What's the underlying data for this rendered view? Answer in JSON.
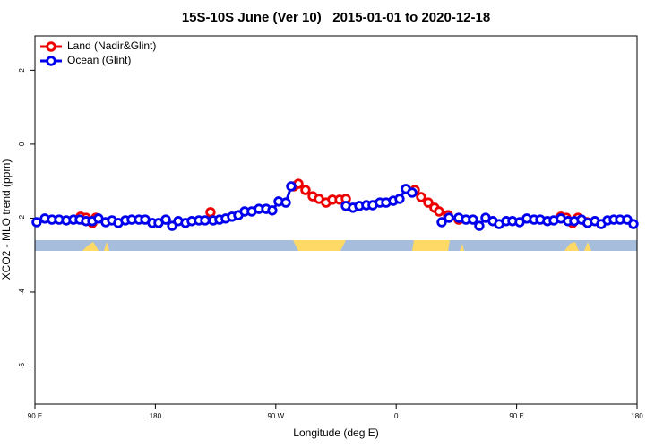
{
  "chart_data": {
    "type": "line",
    "title": "15S-10S June (Ver 10)   2015-01-01 to 2020-12-18",
    "x_label": "Longitude (deg E)",
    "y_label": "XCO2 - MLO trend (ppm)",
    "xlim": [
      90,
      540
    ],
    "ylim": [
      -7.03,
      2.93
    ],
    "xticks": [
      {
        "value": 90,
        "label": "90 E"
      },
      180,
      {
        "value": 270,
        "label": "90 W"
      },
      {
        "value": 360,
        "label": "0"
      },
      {
        "value": 450,
        "label": "90 E"
      },
      {
        "value": 540,
        "label": "180"
      }
    ],
    "yticks": [
      2,
      0,
      -2,
      -4,
      -6
    ],
    "legend": "top-left",
    "series": [
      {
        "name": "Land (Nadir&Glint)",
        "color": "#ee0000",
        "x": [
          124.1,
          128.2,
          132.9,
          135.5,
          null,
          221.2,
          null,
          283.5,
          286.9,
          292.2,
          297.6,
          302.3,
          307.6,
          312.3,
          317.7,
          322.4,
          null,
          373.9,
          378.6,
          384.0,
          388.6,
          392.0,
          398.7,
          406.7,
          null,
          483.1,
          487.1,
          491.8,
          495.8,
          502.5
        ],
        "values": [
          -1.96,
          -1.99,
          -2.13,
          -1.99,
          null,
          -1.84,
          null,
          -1.14,
          -1.07,
          -1.24,
          -1.41,
          -1.48,
          -1.58,
          -1.5,
          -1.5,
          -1.48,
          null,
          -1.24,
          -1.43,
          -1.58,
          -1.72,
          -1.82,
          -1.92,
          -2.04,
          null,
          -1.96,
          -1.99,
          -2.13,
          -1.99,
          -2.11
        ]
      },
      {
        "name": "Ocean (Glint)",
        "color": "#0000ee",
        "x": [
          91.3,
          97.4,
          102.7,
          108.1,
          113.4,
          118.8,
          123.5,
          128.2,
          132.9,
          137.5,
          142.9,
          147.6,
          152.3,
          157.6,
          162.3,
          167.7,
          172.4,
          177.7,
          182.4,
          187.8,
          192.5,
          197.1,
          202.5,
          207.2,
          212.5,
          217.2,
          223.2,
          227.9,
          232.6,
          237.3,
          242.0,
          246.7,
          252.0,
          257.4,
          262.8,
          267.4,
          272.1,
          277.5,
          281.5,
          null,
          322.4,
          327.7,
          332.4,
          337.7,
          342.4,
          347.8,
          352.5,
          357.8,
          362.5,
          367.2,
          371.9,
          null,
          394.0,
          399.4,
          406.7,
          412.1,
          417.4,
          422.1,
          426.8,
          432.2,
          436.9,
          442.2,
          446.9,
          452.3,
          457.6,
          463.0,
          467.7,
          473.0,
          477.7,
          483.1,
          488.4,
          493.1,
          498.5,
          503.1,
          508.5,
          513.2,
          517.9,
          522.6,
          527.3,
          532.6,
          537.3
        ],
        "values": [
          -2.11,
          -2.01,
          -2.04,
          -2.04,
          -2.06,
          -2.04,
          -2.04,
          -2.08,
          -2.08,
          -2.01,
          -2.11,
          -2.06,
          -2.13,
          -2.06,
          -2.04,
          -2.04,
          -2.04,
          -2.13,
          -2.13,
          -2.04,
          -2.21,
          -2.08,
          -2.13,
          -2.08,
          -2.06,
          -2.06,
          -2.06,
          -2.04,
          -2.01,
          -1.96,
          -1.92,
          -1.82,
          -1.82,
          -1.75,
          -1.75,
          -1.79,
          -1.55,
          -1.58,
          -1.14,
          null,
          -1.67,
          -1.72,
          -1.67,
          -1.65,
          -1.65,
          -1.58,
          -1.58,
          -1.53,
          -1.48,
          -1.21,
          -1.31,
          null,
          -2.11,
          -1.99,
          -1.99,
          -2.04,
          -2.04,
          -2.21,
          -1.99,
          -2.08,
          -2.16,
          -2.08,
          -2.08,
          -2.11,
          -2.01,
          -2.04,
          -2.04,
          -2.08,
          -2.06,
          -2.01,
          -2.08,
          -2.08,
          -2.04,
          -2.13,
          -2.08,
          -2.16,
          -2.06,
          -2.04,
          -2.04,
          -2.04,
          -2.16
        ]
      }
    ]
  }
}
